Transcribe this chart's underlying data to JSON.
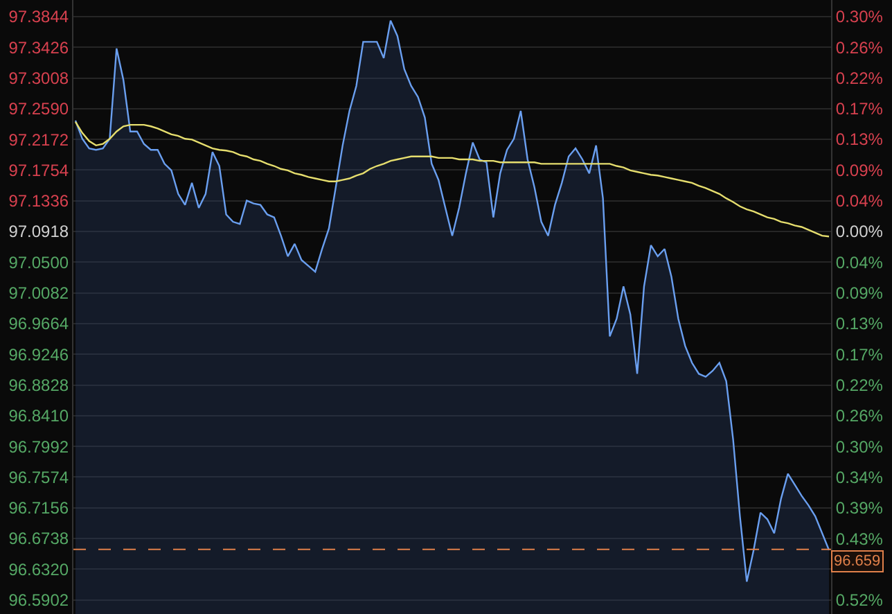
{
  "chart_data": {
    "type": "area",
    "categories": [
      null,
      null,
      null,
      null,
      null,
      null,
      null,
      null,
      null,
      null,
      null,
      null,
      null,
      null,
      null,
      null,
      null,
      null,
      null,
      null,
      null,
      null,
      null,
      null,
      null,
      null,
      null,
      null,
      null,
      null,
      null,
      null,
      null,
      null,
      null,
      null,
      null,
      null,
      null,
      null,
      null,
      null,
      null,
      null,
      null,
      null,
      null,
      null,
      null,
      null,
      null,
      null,
      null,
      null,
      null,
      null,
      null,
      null,
      null,
      null,
      null,
      null,
      null,
      null,
      null,
      null,
      null,
      null,
      null,
      null,
      null,
      null,
      null,
      null,
      null,
      null,
      null,
      null,
      null,
      null,
      null,
      null,
      null,
      null,
      null,
      null,
      null,
      null,
      null,
      null,
      null,
      null,
      null,
      null,
      null,
      null,
      null,
      null,
      null,
      null,
      null,
      null,
      null,
      null,
      null,
      null,
      null,
      null,
      null,
      null,
      null
    ],
    "series": [
      {
        "color": "#6a9ff0",
        "values": [
          97.243,
          97.218,
          97.205,
          97.203,
          97.205,
          97.218,
          97.341,
          97.298,
          97.228,
          97.228,
          97.211,
          97.203,
          97.203,
          97.184,
          97.175,
          97.143,
          97.128,
          97.158,
          97.124,
          97.143,
          97.2,
          97.181,
          97.115,
          97.105,
          97.102,
          97.134,
          97.13,
          97.128,
          97.115,
          97.111,
          97.086,
          97.058,
          97.075,
          97.053,
          97.045,
          97.037,
          97.068,
          97.096,
          97.152,
          97.209,
          97.256,
          97.29,
          97.35,
          97.35,
          97.35,
          97.328,
          97.379,
          97.358,
          97.313,
          97.29,
          97.275,
          97.247,
          97.184,
          97.162,
          97.124,
          97.086,
          97.124,
          97.171,
          97.213,
          97.19,
          97.186,
          97.111,
          97.171,
          97.203,
          97.218,
          97.256,
          97.19,
          97.152,
          97.105,
          97.086,
          97.128,
          97.158,
          97.194,
          97.205,
          97.19,
          97.171,
          97.209,
          97.137,
          96.949,
          96.973,
          97.017,
          96.979,
          96.898,
          97.017,
          97.073,
          97.058,
          97.068,
          97.03,
          96.973,
          96.936,
          96.913,
          96.898,
          96.894,
          96.902,
          96.913,
          96.888,
          96.809,
          96.704,
          96.615,
          96.658,
          96.709,
          96.7,
          96.681,
          96.728,
          96.762,
          96.747,
          96.732,
          96.719,
          96.704,
          96.681,
          96.658
        ]
      },
      {
        "type": "line",
        "color": "#e6de6e",
        "values": [
          97.241,
          97.226,
          97.215,
          97.209,
          97.211,
          97.218,
          97.228,
          97.235,
          97.237,
          97.237,
          97.237,
          97.235,
          97.232,
          97.228,
          97.224,
          97.222,
          97.218,
          97.217,
          97.213,
          97.209,
          97.205,
          97.203,
          97.202,
          97.2,
          97.196,
          97.194,
          97.19,
          97.188,
          97.184,
          97.181,
          97.177,
          97.175,
          97.171,
          97.169,
          97.166,
          97.164,
          97.162,
          97.16,
          97.16,
          97.162,
          97.164,
          97.168,
          97.171,
          97.177,
          97.181,
          97.184,
          97.188,
          97.19,
          97.192,
          97.194,
          97.194,
          97.194,
          97.194,
          97.192,
          97.192,
          97.192,
          97.19,
          97.19,
          97.19,
          97.188,
          97.188,
          97.188,
          97.186,
          97.186,
          97.186,
          97.186,
          97.186,
          97.186,
          97.184,
          97.184,
          97.184,
          97.184,
          97.184,
          97.184,
          97.184,
          97.184,
          97.184,
          97.184,
          97.184,
          97.181,
          97.179,
          97.175,
          97.173,
          97.171,
          97.169,
          97.168,
          97.166,
          97.164,
          97.162,
          97.16,
          97.158,
          97.154,
          97.151,
          97.147,
          97.143,
          97.137,
          97.132,
          97.126,
          97.122,
          97.119,
          97.115,
          97.111,
          97.109,
          97.105,
          97.103,
          97.1,
          97.098,
          97.094,
          97.09,
          97.086,
          97.085
        ]
      }
    ],
    "ylim": [
      96.571,
      97.407
    ],
    "yticks": [
      97.3844,
      97.3426,
      97.3008,
      {
        "value": 97.259,
        "label": "97.2590"
      },
      97.2172,
      97.1754,
      97.1336,
      97.0918,
      {
        "value": 97.05,
        "label": "97.0500"
      },
      97.0082,
      96.9664,
      96.9246,
      96.8828,
      {
        "value": 96.841,
        "label": "96.8410"
      },
      96.7992,
      96.7574,
      96.7156,
      96.6738,
      {
        "value": 96.632,
        "label": "96.6320"
      },
      96.5902
    ],
    "y2lim": [
      -0.5364,
      0.3246
    ],
    "y2ticks": [
      {
        "value": 0.3014,
        "label": "0.30%"
      },
      {
        "value": 0.2584,
        "label": "0.26%"
      },
      {
        "value": 0.2153,
        "label": "0.22%"
      },
      {
        "value": 0.1723,
        "label": "0.17%"
      },
      {
        "value": 0.1292,
        "label": "0.13%"
      },
      {
        "value": 0.0861,
        "label": "0.09%"
      },
      {
        "value": 0.0431,
        "label": "0.04%"
      },
      {
        "value": 0,
        "label": "0.00%"
      },
      {
        "value": -0.0431,
        "label": "0.04%"
      },
      {
        "value": -0.0861,
        "label": "0.09%"
      },
      {
        "value": -0.1292,
        "label": "0.13%"
      },
      {
        "value": -0.1723,
        "label": "0.17%"
      },
      {
        "value": -0.2153,
        "label": "0.22%"
      },
      {
        "value": -0.2584,
        "label": "0.26%"
      },
      {
        "value": -0.3014,
        "label": "0.30%"
      },
      {
        "value": -0.3445,
        "label": "0.34%"
      },
      {
        "value": -0.3875,
        "label": "0.39%"
      },
      {
        "value": -0.4306,
        "label": "0.43%"
      },
      {
        "value": -0.4736,
        "label": null
      },
      {
        "value": -0.5166,
        "label": "0.52%"
      }
    ],
    "ref_lines": [
      {
        "axis": "y",
        "value": 96.659,
        "label": "96.659",
        "color": "#e0804a",
        "line_style": "dashed"
      }
    ],
    "grid": "y",
    "marker": "none"
  }
}
